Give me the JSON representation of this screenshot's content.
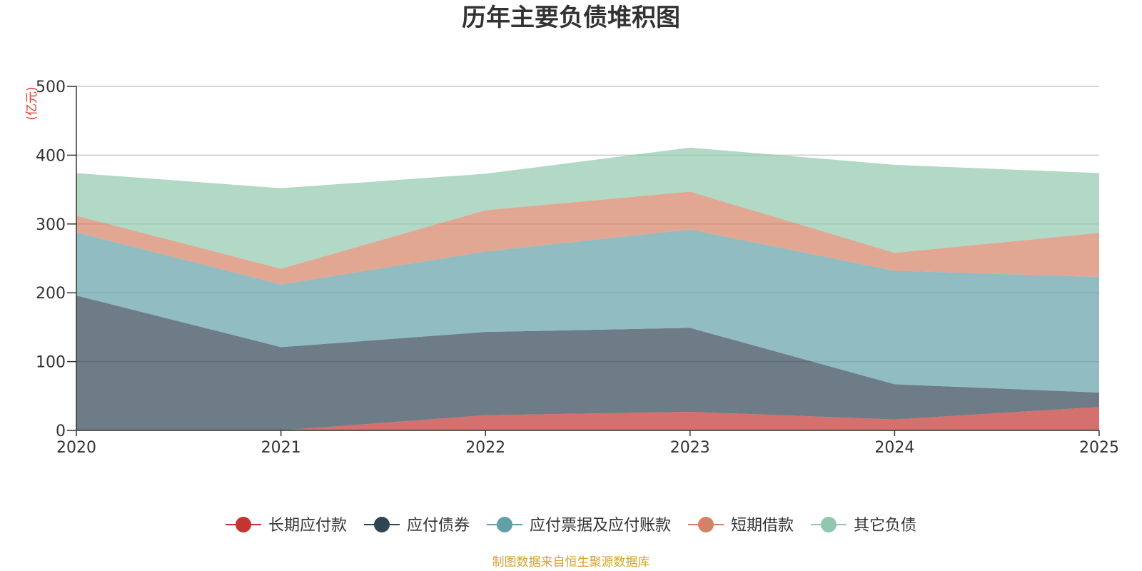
{
  "chart_data": {
    "type": "area",
    "stacked": true,
    "title": "历年主要负债堆积图",
    "unit_label": "(亿元)",
    "categories": [
      "2020",
      "2021",
      "2022",
      "2023",
      "2024",
      "2025"
    ],
    "ylim": [
      0,
      500
    ],
    "yticks": [
      0,
      100,
      200,
      300,
      400,
      500
    ],
    "grid": true,
    "legend_position": "bottom",
    "series": [
      {
        "name": "长期应付款",
        "color": "#c23531",
        "values": [
          0,
          0,
          22,
          27,
          16,
          34
        ]
      },
      {
        "name": "应付债券",
        "color": "#2f4554",
        "values": [
          196,
          121,
          121,
          122,
          51,
          21
        ]
      },
      {
        "name": "应付票据及应付账款",
        "color": "#61a0a8",
        "values": [
          92,
          91,
          117,
          143,
          165,
          168
        ]
      },
      {
        "name": "短期借款",
        "color": "#d48265",
        "values": [
          24,
          23,
          60,
          55,
          26,
          64
        ]
      },
      {
        "name": "其它负债",
        "color": "#91c7ae",
        "values": [
          62,
          117,
          53,
          64,
          128,
          87
        ]
      }
    ],
    "source_note": "制图数据来自恒生聚源数据库"
  }
}
